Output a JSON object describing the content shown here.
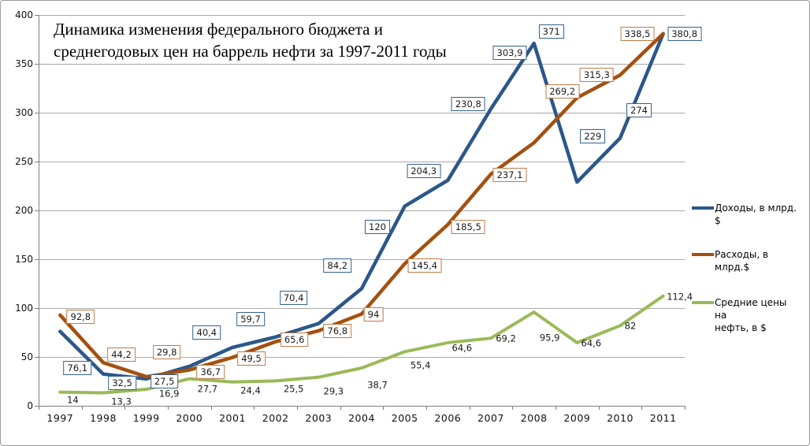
{
  "title": {
    "lines": [
      "Динамика изменения федерального бюджета и",
      "среднегодовых цен на баррель нефти за 1997-2011 годы"
    ]
  },
  "colors": {
    "income": "#2B578A",
    "expenses": "#A4500F",
    "oil": "#9ABA58",
    "grid": "#A9A9A9",
    "axis": "#7F7F7F",
    "label_text": "#1A1A1A",
    "chart_border": "#9C9C9C",
    "background": "#FFFFFF"
  },
  "chart_data": {
    "type": "line",
    "title": "Динамика изменения федерального бюджета и среднегодовых цен на баррель нефти за 1997-2011 годы",
    "categories": [
      1997,
      1998,
      1999,
      2000,
      2001,
      2002,
      2003,
      2004,
      2005,
      2006,
      2007,
      2008,
      2009,
      2010,
      2011
    ],
    "ylim": [
      0,
      400
    ],
    "y_ticks": [
      0,
      50,
      100,
      150,
      200,
      250,
      300,
      350,
      400
    ],
    "grid": true,
    "legend_position": "right",
    "series": [
      {
        "key": "income",
        "name": "Доходы, в млрд. $",
        "legend_label": "Доходы, в млрд. $",
        "color": "#2B578A",
        "label_box": true,
        "label_border": "#33618D",
        "values": [
          76.1,
          32.5,
          27.5,
          40.4,
          59.7,
          70.4,
          84.2,
          120,
          204.3,
          230.8,
          303.9,
          371,
          229,
          274,
          380.8
        ],
        "labels": [
          "76,1",
          "32,5",
          "27,5",
          "40,4",
          "59,7",
          "70,4",
          "84,2",
          "120",
          "204,3",
          "230,8",
          "303,9",
          "371",
          "229",
          "274",
          "380,8"
        ],
        "label_offsets": [
          [
            22,
            46
          ],
          [
            24,
            11
          ],
          [
            23,
            3
          ],
          [
            22,
            -43
          ],
          [
            23,
            -36
          ],
          [
            23,
            -50
          ],
          [
            24,
            -74
          ],
          [
            20,
            -78
          ],
          [
            24,
            -45
          ],
          [
            26,
            -97
          ],
          [
            24,
            -71
          ],
          [
            22,
            -15
          ],
          [
            20,
            -58
          ],
          [
            24,
            -35
          ],
          [
            27,
            0
          ]
        ]
      },
      {
        "key": "expenses",
        "name": "Расходы, в млрд.$",
        "legend_label": "Расходы, в млрд.$",
        "color": "#A4500F",
        "label_box": true,
        "label_border": "#BF7B46",
        "values": [
          92.8,
          44.2,
          29.8,
          36.7,
          49.5,
          65.6,
          76.8,
          94,
          145.4,
          185.5,
          237.1,
          269.2,
          315.3,
          338.5,
          380.8
        ],
        "labels": [
          "92,8",
          "44,2",
          "29,8",
          "36,7",
          "49,5",
          "65,6",
          "76,8",
          "94",
          "145,4",
          "185,5",
          "237,1",
          "269,2",
          "315,3",
          "338,5",
          ""
        ],
        "label_offsets": [
          [
            26,
            2
          ],
          [
            23,
            -10
          ],
          [
            26,
            -31
          ],
          [
            27,
            3
          ],
          [
            24,
            1
          ],
          [
            24,
            -3
          ],
          [
            24,
            0
          ],
          [
            15,
            1
          ],
          [
            25,
            2
          ],
          [
            26,
            3
          ],
          [
            24,
            1
          ],
          [
            36,
            -65
          ],
          [
            25,
            -29
          ],
          [
            22,
            -52
          ],
          [
            0,
            0
          ]
        ]
      },
      {
        "key": "oil",
        "name": "Средние цены на нефть, в $",
        "legend_label": "Средние цены на\nнефть, в $",
        "color": "#9ABA58",
        "label_box": false,
        "label_border": "",
        "values": [
          14,
          13.3,
          16.9,
          27.7,
          24.4,
          25.5,
          29.3,
          38.7,
          55.4,
          64.6,
          69.2,
          95.9,
          64.6,
          82,
          112.4
        ],
        "labels": [
          "14",
          "13,3",
          "16,9",
          "27,7",
          "24,4",
          "25,5",
          "29,3",
          "38,7",
          "55,4",
          "64,6",
          "69,2",
          "95,9",
          "64,6",
          "82",
          "112,4"
        ],
        "label_offsets": [
          [
            16,
            10
          ],
          [
            23,
            11
          ],
          [
            29,
            6
          ],
          [
            23,
            13
          ],
          [
            23,
            11
          ],
          [
            23,
            11
          ],
          [
            19,
            18
          ],
          [
            20,
            22
          ],
          [
            20,
            18
          ],
          [
            18,
            7
          ],
          [
            19,
            1
          ],
          [
            20,
            33
          ],
          [
            18,
            1
          ],
          [
            13,
            1
          ],
          [
            21,
            1
          ]
        ]
      }
    ]
  }
}
